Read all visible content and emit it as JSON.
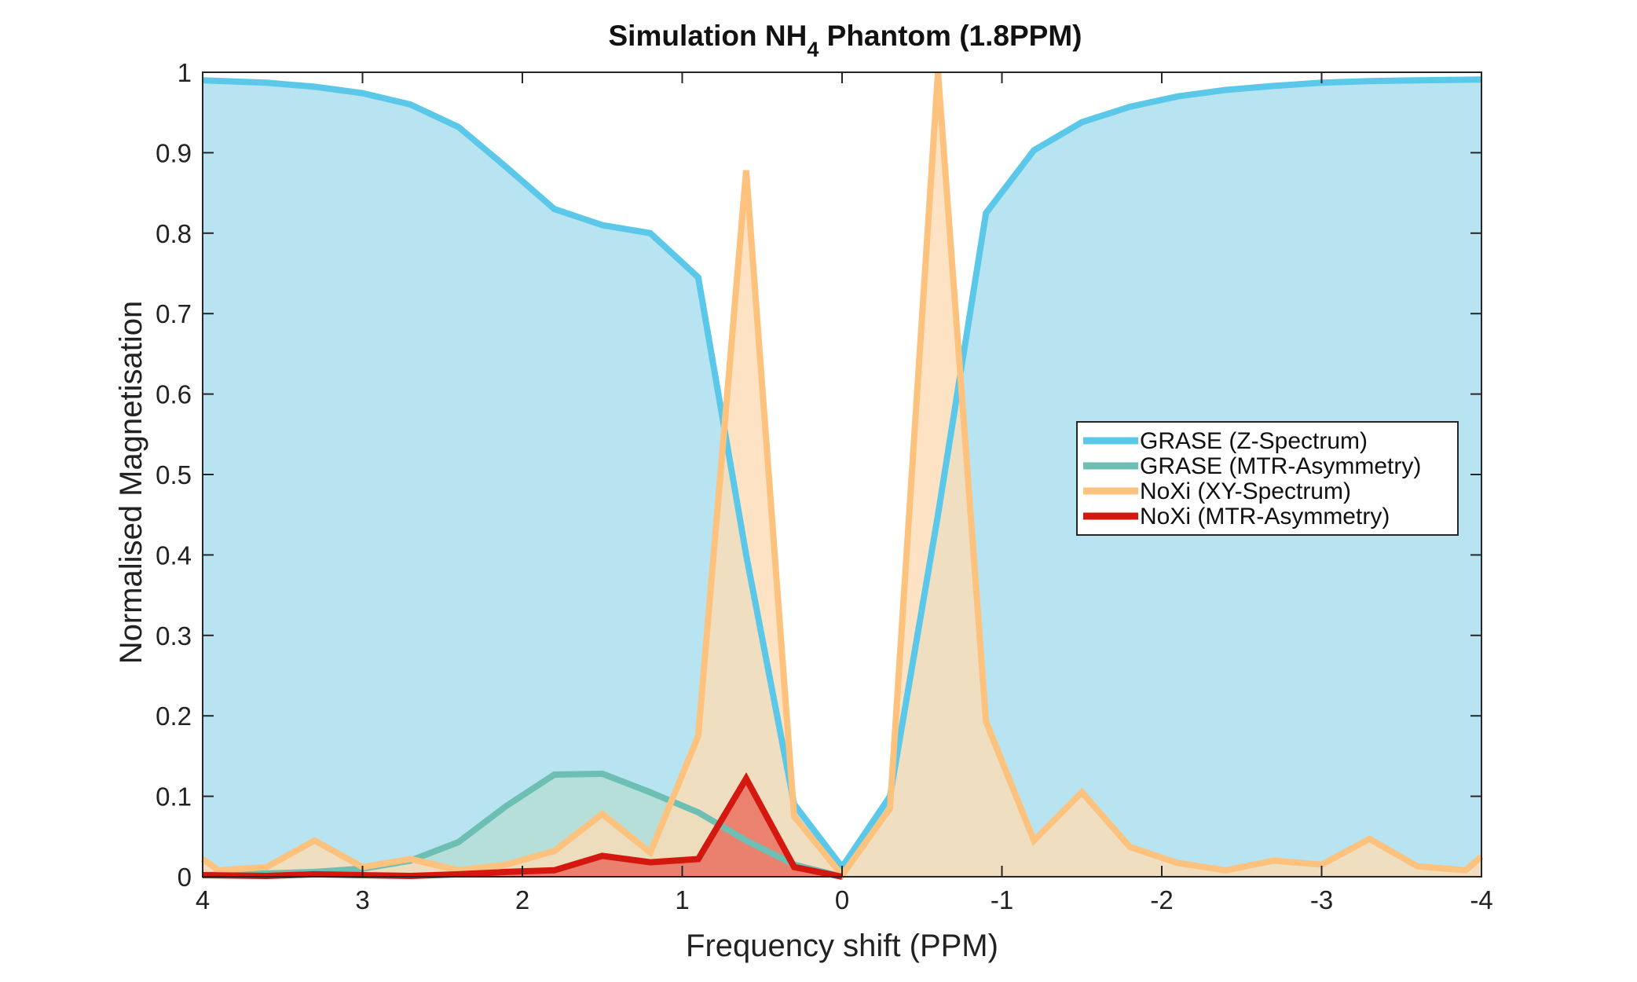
{
  "chart_data": {
    "type": "area",
    "title": {
      "prefix": "Simulation NH",
      "subscript": "4",
      "suffix": " Phantom (1.8PPM)"
    },
    "xlabel": "Frequency shift (PPM)",
    "ylabel": "Normalised Magnetisation",
    "xlim": [
      4,
      -4
    ],
    "ylim": [
      0,
      1
    ],
    "x_reversed": true,
    "xticks": [
      4,
      3,
      2,
      1,
      0,
      -1,
      -2,
      -3,
      -4
    ],
    "xtick_labels": [
      "4",
      "3",
      "2",
      "1",
      "0",
      "-1",
      "-2",
      "-3",
      "-4"
    ],
    "yticks": [
      0,
      0.1,
      0.2,
      0.3,
      0.4,
      0.5,
      0.6,
      0.7,
      0.8,
      0.9,
      1
    ],
    "ytick_labels": [
      "0",
      "0.1",
      "0.2",
      "0.3",
      "0.4",
      "0.5",
      "0.6",
      "0.7",
      "0.8",
      "0.9",
      "1"
    ],
    "legend_position": "center-right",
    "series": [
      {
        "name": "GRASE (Z-Spectrum)",
        "color": "#5bc8ea",
        "fill": "#a6ddee",
        "x": [
          4,
          3.6,
          3.3,
          3.0,
          2.7,
          2.4,
          2.1,
          1.8,
          1.5,
          1.2,
          0.9,
          0.6,
          0.3,
          0.0,
          -0.3,
          -0.6,
          -0.9,
          -1.2,
          -1.5,
          -1.8,
          -2.1,
          -2.4,
          -2.7,
          -3.0,
          -3.3,
          -3.6,
          -4.0
        ],
        "values": [
          0.99,
          0.987,
          0.982,
          0.974,
          0.96,
          0.932,
          0.882,
          0.83,
          0.81,
          0.8,
          0.745,
          0.4,
          0.09,
          0.012,
          0.1,
          0.45,
          0.825,
          0.903,
          0.938,
          0.957,
          0.97,
          0.978,
          0.983,
          0.987,
          0.989,
          0.99,
          0.991
        ]
      },
      {
        "name": "GRASE (MTR-Asymmetry)",
        "color": "#6dbfb3",
        "fill": "#b5ddd4",
        "x": [
          4,
          3.6,
          3.3,
          3.0,
          2.7,
          2.4,
          2.1,
          1.8,
          1.5,
          1.2,
          0.9,
          0.6,
          0.3,
          0.0
        ],
        "values": [
          0.002,
          0.004,
          0.006,
          0.01,
          0.02,
          0.043,
          0.088,
          0.127,
          0.128,
          0.105,
          0.08,
          0.045,
          0.015,
          0.0
        ]
      },
      {
        "name": "NoXi (XY-Spectrum)",
        "color": "#fdc27d",
        "fill": "#fcdcb4",
        "x": [
          4,
          3.9,
          3.6,
          3.3,
          3.0,
          2.7,
          2.4,
          2.1,
          1.8,
          1.5,
          1.2,
          0.9,
          0.6,
          0.3,
          0.0,
          -0.3,
          -0.6,
          -0.9,
          -1.2,
          -1.5,
          -1.8,
          -2.1,
          -2.4,
          -2.7,
          -3.0,
          -3.3,
          -3.6,
          -3.9,
          -4.0
        ],
        "values": [
          0.022,
          0.008,
          0.012,
          0.045,
          0.012,
          0.022,
          0.008,
          0.015,
          0.032,
          0.078,
          0.03,
          0.175,
          0.878,
          0.075,
          0.002,
          0.085,
          1.0,
          0.193,
          0.045,
          0.105,
          0.037,
          0.017,
          0.008,
          0.02,
          0.015,
          0.047,
          0.013,
          0.008,
          0.025
        ]
      },
      {
        "name": "NoXi (MTR-Asymmetry)",
        "color": "#d4180f",
        "fill": "#e96a5a",
        "x": [
          4,
          3.6,
          3.3,
          3.0,
          2.7,
          2.4,
          2.1,
          1.8,
          1.5,
          1.2,
          0.9,
          0.6,
          0.3,
          0.0
        ],
        "values": [
          0.002,
          0.001,
          0.003,
          0.002,
          0.001,
          0.003,
          0.006,
          0.008,
          0.026,
          0.018,
          0.022,
          0.122,
          0.012,
          0.0
        ]
      }
    ]
  }
}
